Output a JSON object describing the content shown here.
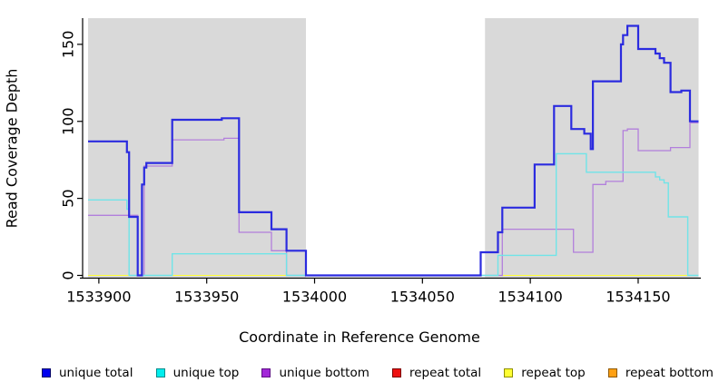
{
  "figure": {
    "xlabel": "Coordinate in Reference Genome",
    "ylabel": "Read Coverage Depth"
  },
  "legend": [
    {
      "id": "unique-total",
      "label": "unique total",
      "color": "#0000ee",
      "border": "#000066"
    },
    {
      "id": "unique-top",
      "label": "unique top",
      "color": "#00eeee",
      "border": "#008b8b"
    },
    {
      "id": "unique-bottom",
      "label": "unique bottom",
      "color": "#a228d8",
      "border": "#5e0f85"
    },
    {
      "id": "repeat-total",
      "label": "repeat total",
      "color": "#ee1111",
      "border": "#7a0000"
    },
    {
      "id": "repeat-top",
      "label": "repeat top",
      "color": "#ffff33",
      "border": "#8f8f00"
    },
    {
      "id": "repeat-bottom",
      "label": "repeat bottom",
      "color": "#ffa013",
      "border": "#8f5800"
    }
  ],
  "chart_data": {
    "type": "line",
    "subtype": "step-coverage",
    "title": "",
    "xlabel": "Coordinate in Reference Genome",
    "ylabel": "Read Coverage Depth",
    "xlim": [
      1533895,
      1534178
    ],
    "ylim": [
      0,
      167
    ],
    "x_ticks": [
      1533900,
      1533950,
      1534000,
      1534050,
      1534100,
      1534150
    ],
    "x_tick_labels": [
      "1533900",
      "1533950",
      "1534000",
      "1534050",
      "1534100",
      "1534150"
    ],
    "y_ticks": [
      0,
      50,
      100,
      150
    ],
    "y_tick_labels": [
      "0",
      "50",
      "100",
      "150"
    ],
    "grid": false,
    "legend_position": "bottom",
    "panel_background": "#d9d9d9",
    "shaded_regions": [
      {
        "x0": 1533895,
        "x1": 1533996,
        "color": "#d9d9d9",
        "note": "left gray panel"
      },
      {
        "x0": 1534079,
        "x1": 1534178,
        "color": "#d9d9d9",
        "note": "right gray panel"
      }
    ],
    "series": [
      {
        "name": "repeat total",
        "color": "#ee1111",
        "width": 1,
        "steps": [
          [
            1533895,
            0
          ],
          [
            1534178,
            0
          ]
        ]
      },
      {
        "name": "repeat top",
        "color": "#ffff33",
        "width": 1,
        "steps": [
          [
            1533895,
            0
          ],
          [
            1534178,
            0
          ]
        ]
      },
      {
        "name": "unique bottom",
        "color": "#b27fdc",
        "width": 1.3,
        "steps": [
          [
            1533895,
            39
          ],
          [
            1533918,
            0
          ],
          [
            1533921,
            71
          ],
          [
            1533934,
            88
          ],
          [
            1533958,
            89
          ],
          [
            1533965,
            28
          ],
          [
            1533980,
            16
          ],
          [
            1533987,
            0
          ],
          [
            1534087,
            30
          ],
          [
            1534120,
            15
          ],
          [
            1534129,
            59
          ],
          [
            1534135,
            61
          ],
          [
            1534143,
            94
          ],
          [
            1534145,
            95
          ],
          [
            1534150,
            81
          ],
          [
            1534165,
            83
          ],
          [
            1534174,
            99
          ],
          [
            1534178,
            99
          ]
        ]
      },
      {
        "name": "unique top",
        "color": "#70e4e8",
        "width": 1.4,
        "steps": [
          [
            1533895,
            49
          ],
          [
            1533913,
            43
          ],
          [
            1533914,
            0
          ],
          [
            1533934,
            14
          ],
          [
            1533987,
            0
          ],
          [
            1534085,
            13
          ],
          [
            1534112,
            79
          ],
          [
            1534126,
            67
          ],
          [
            1534158,
            64
          ],
          [
            1534160,
            62
          ],
          [
            1534162,
            60
          ],
          [
            1534164,
            38
          ],
          [
            1534173,
            0
          ],
          [
            1534178,
            0
          ]
        ]
      },
      {
        "name": "repeat bottom",
        "color": "#ff9800",
        "width": 2,
        "steps": [
          [
            1533896,
            0
          ],
          [
            1533913,
            null
          ],
          [
            1533921,
            0
          ],
          [
            1533987,
            null
          ],
          [
            1534086,
            0
          ],
          [
            1534173,
            null
          ]
        ]
      },
      {
        "name": "unique total",
        "color": "#2b2bdf",
        "width": 2.2,
        "steps": [
          [
            1533895,
            87
          ],
          [
            1533913,
            80
          ],
          [
            1533914,
            38
          ],
          [
            1533918,
            0
          ],
          [
            1533920,
            59
          ],
          [
            1533921,
            70
          ],
          [
            1533922,
            73
          ],
          [
            1533934,
            101
          ],
          [
            1533957,
            102
          ],
          [
            1533965,
            41
          ],
          [
            1533980,
            30
          ],
          [
            1533987,
            16
          ],
          [
            1533996,
            0
          ],
          [
            1534077,
            15
          ],
          [
            1534085,
            28
          ],
          [
            1534087,
            44
          ],
          [
            1534102,
            72
          ],
          [
            1534111,
            110
          ],
          [
            1534119,
            95
          ],
          [
            1534125,
            92
          ],
          [
            1534128,
            82
          ],
          [
            1534129,
            126
          ],
          [
            1534142,
            150
          ],
          [
            1534143,
            156
          ],
          [
            1534145,
            162
          ],
          [
            1534150,
            147
          ],
          [
            1534158,
            144
          ],
          [
            1534160,
            141
          ],
          [
            1534162,
            138
          ],
          [
            1534165,
            119
          ],
          [
            1534170,
            120
          ],
          [
            1534174,
            100
          ],
          [
            1534178,
            100
          ]
        ]
      }
    ]
  }
}
